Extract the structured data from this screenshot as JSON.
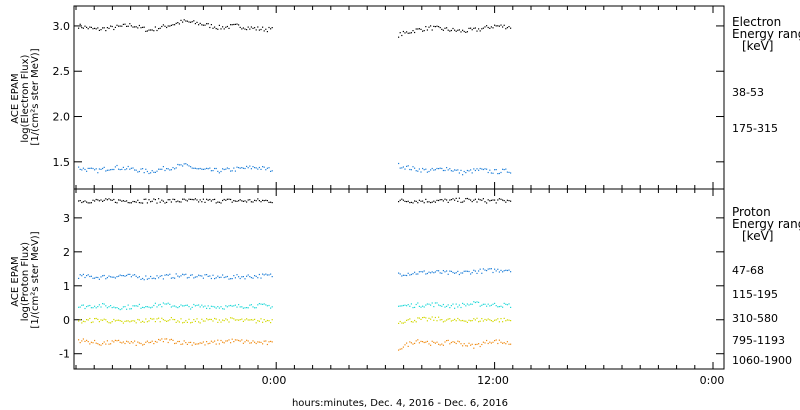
{
  "xlabel": "hours:minutes, Dec.  4, 2016 - Dec.  6, 2016",
  "x_ticks": [
    "0:00",
    "12:00",
    "0:00"
  ],
  "chart_data": [
    {
      "type": "scatter",
      "ylabel_lines": [
        "ACE EPAM",
        "log(Electron Flux)",
        "[1/(cm²s ster MeV)]"
      ],
      "y_ticks": [
        "1.5",
        "2.0",
        "2.5",
        "3.0"
      ],
      "ylim": [
        1.2,
        3.22
      ],
      "legend_title": [
        "Electron",
        "Energy range",
        "[keV]"
      ],
      "series": [
        {
          "name": "38-53",
          "color": "#000000",
          "segments": [
            [
              3.0,
              2.96,
              2.98,
              3.01,
              2.95,
              3.0,
              3.05,
              3.02,
              2.98,
              3.0,
              2.97,
              2.96
            ],
            [
              2.9,
              2.95,
              2.98,
              2.96,
              2.94,
              2.96,
              3.0,
              2.99
            ]
          ]
        },
        {
          "name": "175-315",
          "color": "#1f7fd8",
          "segments": [
            [
              1.43,
              1.4,
              1.44,
              1.42,
              1.39,
              1.43,
              1.46,
              1.41,
              1.4,
              1.42,
              1.44,
              1.41
            ],
            [
              1.46,
              1.42,
              1.4,
              1.43,
              1.38,
              1.41,
              1.39,
              1.4
            ]
          ]
        }
      ]
    },
    {
      "type": "scatter",
      "ylabel_lines": [
        "ACE EPAM",
        "log(Proton Flux)",
        "[1/(cm²s ster MeV)]"
      ],
      "y_ticks": [
        "-1",
        "0",
        "1",
        "2",
        "3"
      ],
      "ylim": [
        -1.45,
        3.85
      ],
      "legend_title": [
        "Proton",
        "Energy range",
        "[keV]"
      ],
      "series": [
        {
          "name": "47-68",
          "color": "#000000",
          "segments": [
            [
              3.5,
              3.5,
              3.5,
              3.5,
              3.5,
              3.5,
              3.5,
              3.5
            ],
            [
              3.5,
              3.5,
              3.5,
              3.52,
              3.5,
              3.5
            ]
          ]
        },
        {
          "name": "115-195",
          "color": "#1f7fd8",
          "segments": [
            [
              1.28,
              1.25,
              1.3,
              1.24,
              1.27,
              1.3,
              1.26,
              1.25,
              1.28,
              1.3
            ],
            [
              1.35,
              1.38,
              1.4,
              1.36,
              1.42,
              1.45,
              1.48
            ]
          ]
        },
        {
          "name": "310-580",
          "color": "#20d8d8",
          "segments": [
            [
              0.38,
              0.42,
              0.36,
              0.4,
              0.44,
              0.38,
              0.4,
              0.37,
              0.42,
              0.4
            ],
            [
              0.4,
              0.43,
              0.45,
              0.4,
              0.47,
              0.44,
              0.42
            ]
          ]
        },
        {
          "name": "795-1193",
          "color": "#d2d800",
          "segments": [
            [
              -0.05,
              0.0,
              -0.08,
              -0.03,
              0.02,
              -0.05,
              -0.02,
              0.0,
              -0.04,
              -0.02
            ],
            [
              -0.05,
              0.0,
              0.02,
              -0.03,
              -0.01,
              0.0,
              -0.02
            ]
          ]
        },
        {
          "name": "1060-1900",
          "color": "#f08c14",
          "segments": [
            [
              -0.6,
              -0.7,
              -0.65,
              -0.72,
              -0.6,
              -0.68,
              -0.7,
              -0.62,
              -0.66,
              -0.7
            ],
            [
              -0.85,
              -0.6,
              -0.72,
              -0.65,
              -0.78,
              -0.62,
              -0.7
            ]
          ]
        }
      ]
    }
  ]
}
